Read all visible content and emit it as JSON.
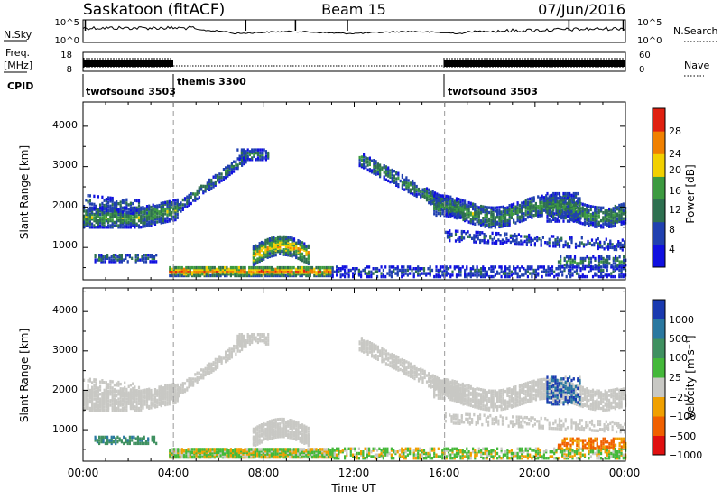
{
  "header": {
    "station": "Saskatoon (fitACF)",
    "beam": "Beam 15",
    "date": "07/Jun/2016"
  },
  "nsky_panel": {
    "left_label": "N.Sky",
    "right_label": "N.Search",
    "left_ticks": [
      "10^5",
      "10^0"
    ],
    "right_ticks": [
      "10^5",
      "10^0"
    ]
  },
  "freq_panel": {
    "left_label_1": "Freq.",
    "left_label_2": "[MHz]",
    "right_label": "Nave",
    "left_ticks": [
      "18",
      "8"
    ],
    "right_ticks": [
      "60",
      "0"
    ]
  },
  "cpid": {
    "label": "CPID",
    "segments": [
      {
        "name": "twofsound 3503",
        "start_hour": 0,
        "end_hour": 4
      },
      {
        "name": "themis 3300",
        "start_hour": 4,
        "end_hour": 16
      },
      {
        "name": "twofsound 3503",
        "start_hour": 16,
        "end_hour": 24
      }
    ]
  },
  "chart_data": [
    {
      "type": "heatmap",
      "name": "power",
      "ylabel": "Slant Range [km]",
      "y_ticks": [
        "4000",
        "3000",
        "2000",
        "1000"
      ],
      "ylim": [
        200,
        4600
      ],
      "xlim": [
        0,
        24
      ],
      "colorbar_label": "Power [dB]",
      "colorbar_ticks": [
        "28",
        "24",
        "20",
        "16",
        "12",
        "8",
        "4"
      ],
      "colorbar_range": [
        0,
        30
      ],
      "colors": [
        "#1010e0",
        "#2040b0",
        "#2e7050",
        "#3c9a40",
        "#f2d000",
        "#f08000",
        "#e02010"
      ]
    },
    {
      "type": "heatmap",
      "name": "velocity",
      "ylabel": "Slant Range [km]",
      "y_ticks": [
        "4000",
        "3000",
        "2000",
        "1000"
      ],
      "ylim": [
        200,
        4600
      ],
      "xlim": [
        0,
        24
      ],
      "xlabel": "Time UT",
      "x_ticks": [
        "00:00",
        "04:00",
        "08:00",
        "12:00",
        "16:00",
        "20:00",
        "00:00"
      ],
      "colorbar_label": "Velocity [m s⁻¹]",
      "colorbar_ticks": [
        "1000",
        "500",
        "100",
        "25",
        "−25",
        "−100",
        "−500",
        "−1000"
      ],
      "colors": [
        "#1a3ab0",
        "#2a78a0",
        "#3f9060",
        "#44b83a",
        "#c8c8c4",
        "#f0a000",
        "#f06000",
        "#e01010"
      ]
    }
  ]
}
